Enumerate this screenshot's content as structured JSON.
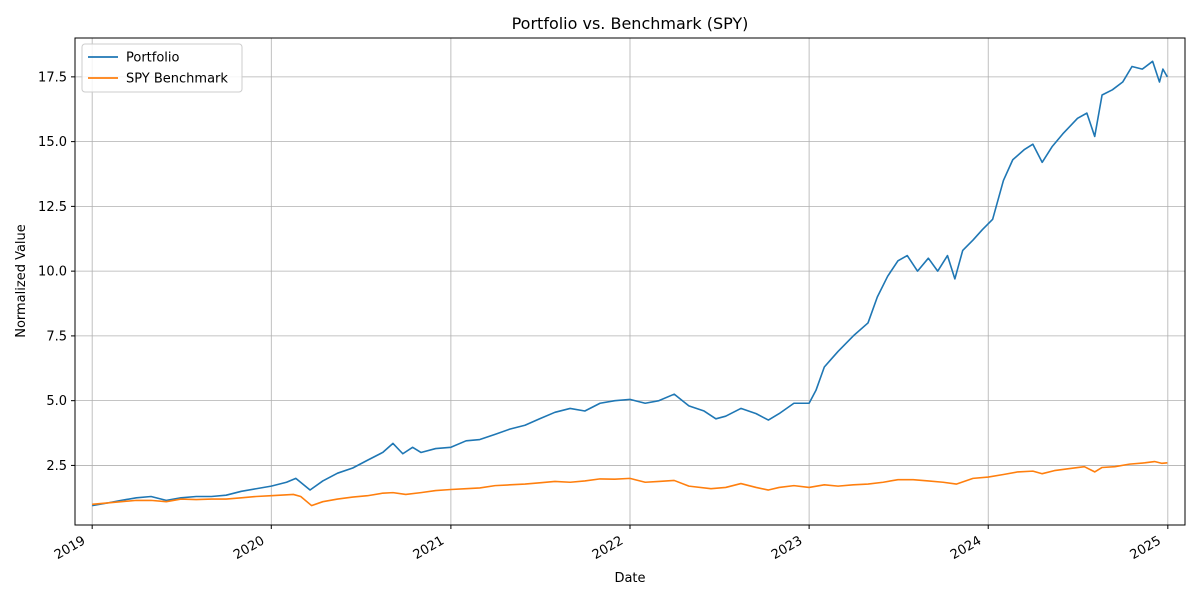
{
  "chart_data": {
    "type": "line",
    "title": "Portfolio vs. Benchmark (SPY)",
    "xlabel": "Date",
    "ylabel": "Normalized Value",
    "x_axis_type": "date",
    "xlim": [
      "2018-11-27",
      "2025-02-05"
    ],
    "ylim": [
      0.2,
      19.0
    ],
    "x_ticks": [
      {
        "date": "2019-01-01",
        "label": "2019"
      },
      {
        "date": "2020-01-01",
        "label": "2020"
      },
      {
        "date": "2021-01-01",
        "label": "2021"
      },
      {
        "date": "2022-01-01",
        "label": "2022"
      },
      {
        "date": "2023-01-01",
        "label": "2023"
      },
      {
        "date": "2024-01-01",
        "label": "2024"
      },
      {
        "date": "2025-01-01",
        "label": "2025"
      }
    ],
    "y_ticks": [
      2.5,
      5.0,
      7.5,
      10.0,
      12.5,
      15.0,
      17.5
    ],
    "y_tick_labels": [
      "2.5",
      "5.0",
      "7.5",
      "10.0",
      "12.5",
      "15.0",
      "17.5"
    ],
    "grid": true,
    "legend_position": "upper-left",
    "series": [
      {
        "name": "Portfolio",
        "color": "#1f77b4",
        "points": [
          [
            "2019-01-01",
            0.95
          ],
          [
            "2019-02-01",
            1.05
          ],
          [
            "2019-03-01",
            1.15
          ],
          [
            "2019-04-01",
            1.25
          ],
          [
            "2019-05-01",
            1.3
          ],
          [
            "2019-06-01",
            1.15
          ],
          [
            "2019-07-01",
            1.25
          ],
          [
            "2019-08-01",
            1.3
          ],
          [
            "2019-09-01",
            1.3
          ],
          [
            "2019-10-01",
            1.35
          ],
          [
            "2019-11-01",
            1.5
          ],
          [
            "2019-12-01",
            1.6
          ],
          [
            "2020-01-01",
            1.7
          ],
          [
            "2020-02-01",
            1.85
          ],
          [
            "2020-02-20",
            2.0
          ],
          [
            "2020-03-20",
            1.55
          ],
          [
            "2020-04-15",
            1.9
          ],
          [
            "2020-05-15",
            2.2
          ],
          [
            "2020-06-15",
            2.4
          ],
          [
            "2020-07-15",
            2.7
          ],
          [
            "2020-08-15",
            3.0
          ],
          [
            "2020-09-05",
            3.35
          ],
          [
            "2020-09-25",
            2.95
          ],
          [
            "2020-10-15",
            3.2
          ],
          [
            "2020-11-01",
            3.0
          ],
          [
            "2020-12-01",
            3.15
          ],
          [
            "2021-01-01",
            3.2
          ],
          [
            "2021-02-01",
            3.45
          ],
          [
            "2021-03-01",
            3.5
          ],
          [
            "2021-04-01",
            3.7
          ],
          [
            "2021-05-01",
            3.9
          ],
          [
            "2021-06-01",
            4.05
          ],
          [
            "2021-07-01",
            4.3
          ],
          [
            "2021-08-01",
            4.55
          ],
          [
            "2021-09-01",
            4.7
          ],
          [
            "2021-10-01",
            4.6
          ],
          [
            "2021-11-01",
            4.9
          ],
          [
            "2021-12-01",
            5.0
          ],
          [
            "2022-01-01",
            5.05
          ],
          [
            "2022-02-01",
            4.9
          ],
          [
            "2022-03-01",
            5.0
          ],
          [
            "2022-04-01",
            5.25
          ],
          [
            "2022-05-01",
            4.8
          ],
          [
            "2022-06-01",
            4.6
          ],
          [
            "2022-06-25",
            4.3
          ],
          [
            "2022-07-15",
            4.4
          ],
          [
            "2022-08-15",
            4.7
          ],
          [
            "2022-09-15",
            4.5
          ],
          [
            "2022-10-10",
            4.25
          ],
          [
            "2022-11-01",
            4.5
          ],
          [
            "2022-12-01",
            4.9
          ],
          [
            "2023-01-01",
            4.9
          ],
          [
            "2023-01-15",
            5.4
          ],
          [
            "2023-02-01",
            6.3
          ],
          [
            "2023-02-15",
            6.6
          ],
          [
            "2023-03-01",
            6.9
          ],
          [
            "2023-04-01",
            7.5
          ],
          [
            "2023-05-01",
            8.0
          ],
          [
            "2023-05-20",
            9.0
          ],
          [
            "2023-06-10",
            9.8
          ],
          [
            "2023-07-01",
            10.4
          ],
          [
            "2023-07-20",
            10.6
          ],
          [
            "2023-08-10",
            10.0
          ],
          [
            "2023-09-01",
            10.5
          ],
          [
            "2023-09-20",
            10.0
          ],
          [
            "2023-10-10",
            10.6
          ],
          [
            "2023-10-25",
            9.7
          ],
          [
            "2023-11-10",
            10.8
          ],
          [
            "2023-12-01",
            11.2
          ],
          [
            "2023-12-20",
            11.6
          ],
          [
            "2024-01-10",
            12.0
          ],
          [
            "2024-02-01",
            13.5
          ],
          [
            "2024-02-20",
            14.3
          ],
          [
            "2024-03-15",
            14.7
          ],
          [
            "2024-04-01",
            14.9
          ],
          [
            "2024-04-20",
            14.2
          ],
          [
            "2024-05-10",
            14.8
          ],
          [
            "2024-06-01",
            15.3
          ],
          [
            "2024-07-01",
            15.9
          ],
          [
            "2024-07-20",
            16.1
          ],
          [
            "2024-08-05",
            15.2
          ],
          [
            "2024-08-20",
            16.8
          ],
          [
            "2024-09-10",
            17.0
          ],
          [
            "2024-10-01",
            17.3
          ],
          [
            "2024-10-20",
            17.9
          ],
          [
            "2024-11-10",
            17.8
          ],
          [
            "2024-12-01",
            18.1
          ],
          [
            "2024-12-15",
            17.3
          ],
          [
            "2024-12-22",
            17.8
          ],
          [
            "2024-12-31",
            17.5
          ]
        ]
      },
      {
        "name": "SPY Benchmark",
        "color": "#ff7f0e",
        "points": [
          [
            "2019-01-01",
            1.0
          ],
          [
            "2019-02-01",
            1.05
          ],
          [
            "2019-03-01",
            1.1
          ],
          [
            "2019-04-01",
            1.15
          ],
          [
            "2019-05-01",
            1.15
          ],
          [
            "2019-06-01",
            1.1
          ],
          [
            "2019-07-01",
            1.2
          ],
          [
            "2019-08-01",
            1.18
          ],
          [
            "2019-09-01",
            1.2
          ],
          [
            "2019-10-01",
            1.2
          ],
          [
            "2019-11-01",
            1.25
          ],
          [
            "2019-12-01",
            1.3
          ],
          [
            "2020-01-01",
            1.33
          ],
          [
            "2020-02-15",
            1.38
          ],
          [
            "2020-03-01",
            1.3
          ],
          [
            "2020-03-23",
            0.95
          ],
          [
            "2020-04-15",
            1.1
          ],
          [
            "2020-05-15",
            1.2
          ],
          [
            "2020-06-15",
            1.28
          ],
          [
            "2020-07-15",
            1.33
          ],
          [
            "2020-08-15",
            1.43
          ],
          [
            "2020-09-05",
            1.45
          ],
          [
            "2020-10-01",
            1.38
          ],
          [
            "2020-11-01",
            1.45
          ],
          [
            "2020-12-01",
            1.53
          ],
          [
            "2021-01-01",
            1.57
          ],
          [
            "2021-02-01",
            1.6
          ],
          [
            "2021-03-01",
            1.63
          ],
          [
            "2021-04-01",
            1.72
          ],
          [
            "2021-05-01",
            1.75
          ],
          [
            "2021-06-01",
            1.78
          ],
          [
            "2021-07-01",
            1.83
          ],
          [
            "2021-08-01",
            1.88
          ],
          [
            "2021-09-01",
            1.85
          ],
          [
            "2021-10-01",
            1.9
          ],
          [
            "2021-11-01",
            1.98
          ],
          [
            "2021-12-01",
            1.97
          ],
          [
            "2022-01-01",
            2.0
          ],
          [
            "2022-02-01",
            1.85
          ],
          [
            "2022-03-01",
            1.88
          ],
          [
            "2022-04-01",
            1.92
          ],
          [
            "2022-05-01",
            1.7
          ],
          [
            "2022-06-15",
            1.6
          ],
          [
            "2022-07-15",
            1.65
          ],
          [
            "2022-08-15",
            1.8
          ],
          [
            "2022-09-15",
            1.65
          ],
          [
            "2022-10-10",
            1.55
          ],
          [
            "2022-11-01",
            1.65
          ],
          [
            "2022-12-01",
            1.72
          ],
          [
            "2023-01-01",
            1.65
          ],
          [
            "2023-02-01",
            1.75
          ],
          [
            "2023-03-01",
            1.7
          ],
          [
            "2023-04-01",
            1.75
          ],
          [
            "2023-05-01",
            1.78
          ],
          [
            "2023-06-01",
            1.85
          ],
          [
            "2023-07-01",
            1.95
          ],
          [
            "2023-08-01",
            1.95
          ],
          [
            "2023-09-01",
            1.9
          ],
          [
            "2023-10-01",
            1.85
          ],
          [
            "2023-10-28",
            1.78
          ],
          [
            "2023-12-01",
            2.0
          ],
          [
            "2024-01-01",
            2.05
          ],
          [
            "2024-02-01",
            2.15
          ],
          [
            "2024-03-01",
            2.25
          ],
          [
            "2024-04-01",
            2.28
          ],
          [
            "2024-04-20",
            2.18
          ],
          [
            "2024-05-15",
            2.3
          ],
          [
            "2024-06-15",
            2.38
          ],
          [
            "2024-07-15",
            2.45
          ],
          [
            "2024-08-05",
            2.25
          ],
          [
            "2024-08-20",
            2.42
          ],
          [
            "2024-09-15",
            2.45
          ],
          [
            "2024-10-15",
            2.55
          ],
          [
            "2024-11-15",
            2.6
          ],
          [
            "2024-12-05",
            2.65
          ],
          [
            "2024-12-20",
            2.58
          ],
          [
            "2024-12-31",
            2.6
          ]
        ]
      }
    ]
  }
}
